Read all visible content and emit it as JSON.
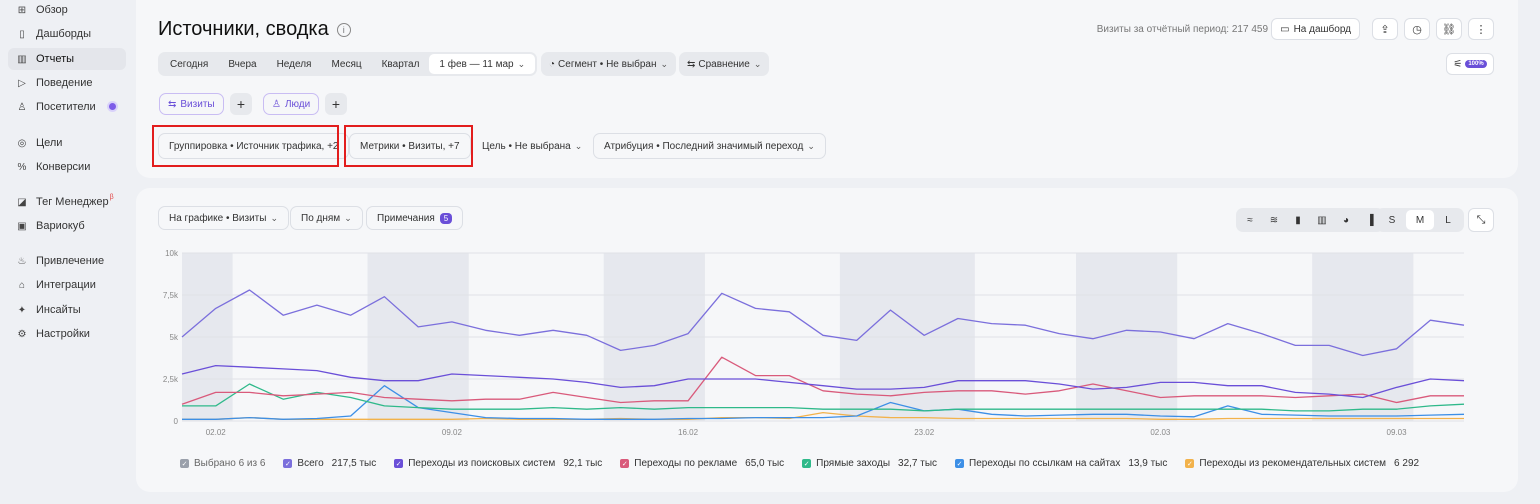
{
  "sidebar": {
    "items": [
      {
        "label": "Обзор",
        "icon": "grid-icon"
      },
      {
        "label": "Дашборды",
        "icon": "dashboard-icon"
      },
      {
        "label": "Отчеты",
        "icon": "reports-icon"
      },
      {
        "label": "Поведение",
        "icon": "play-icon"
      },
      {
        "label": "Посетители",
        "icon": "person-icon"
      },
      {
        "label": "Цели",
        "icon": "target-icon"
      },
      {
        "label": "Конверсии",
        "icon": "percent-icon"
      },
      {
        "label": "Тег Менеджер",
        "icon": "tag-icon"
      },
      {
        "label": "Вариокуб",
        "icon": "cube-icon"
      },
      {
        "label": "Привлечение",
        "icon": "flame-icon"
      },
      {
        "label": "Интеграции",
        "icon": "puzzle-icon"
      },
      {
        "label": "Инсайты",
        "icon": "sparkle-icon"
      },
      {
        "label": "Настройки",
        "icon": "gear-icon"
      }
    ],
    "tag_sup": "β"
  },
  "header": {
    "title": "Источники, сводка",
    "visits_total": "Визиты за отчётный период: 217 459",
    "to_dashboard": "На дашборд"
  },
  "periods": [
    "Сегодня",
    "Вчера",
    "Неделя",
    "Месяц",
    "Квартал"
  ],
  "date_range": "1 фев — 11 мар",
  "segment": "Сегмент • Не выбран",
  "compare": "Сравнение",
  "zoom_badge": "100%",
  "segments": {
    "visits": "Визиты",
    "people": "Люди"
  },
  "params": {
    "grouping": "Группировка • Источник трафика, +2",
    "metrics": "Метрики • Визиты, +7",
    "goal": "Цель • Не выбрана",
    "attribution": "Атрибуция • Последний значимый переход"
  },
  "chart_controls": {
    "on_chart": "На графике • Визиты",
    "by_days": "По дням",
    "notes": "Примечания",
    "notes_count": "5",
    "sizes": [
      "S",
      "M",
      "L"
    ],
    "selected_size": "M"
  },
  "legend": {
    "selected": "Выбрано 6 из 6",
    "items": [
      {
        "name": "Всего",
        "value": "217,5 тыс",
        "color": "#7b6fdc"
      },
      {
        "name": "Переходы из поисковых систем",
        "value": "92,1 тыс",
        "color": "#6a4fd8"
      },
      {
        "name": "Переходы по рекламе",
        "value": "65,0 тыс",
        "color": "#d95a7b"
      },
      {
        "name": "Прямые заходы",
        "value": "32,7 тыс",
        "color": "#2fb98a"
      },
      {
        "name": "Переходы по ссылкам на сайтах",
        "value": "13,9 тыс",
        "color": "#3d8fe6"
      },
      {
        "name": "Переходы из рекомендательных систем",
        "value": "6 292",
        "color": "#f2b24b"
      }
    ]
  },
  "chart_data": {
    "type": "line",
    "ylim": [
      0,
      10000
    ],
    "yticks": [
      "0",
      "2,5k",
      "5k",
      "7,5k",
      "10k"
    ],
    "ytick_values": [
      0,
      2500,
      5000,
      7500,
      10000
    ],
    "xticks": [
      "02.02",
      "09.02",
      "16.02",
      "23.02",
      "02.03",
      "09.03"
    ],
    "xtick_index": [
      1,
      8,
      15,
      22,
      29,
      36
    ],
    "weekend_bands": [
      [
        0,
        1
      ],
      [
        6,
        8
      ],
      [
        13,
        15
      ],
      [
        20,
        23
      ],
      [
        27,
        29
      ],
      [
        34,
        36
      ]
    ],
    "series": [
      {
        "name": "Всего",
        "color": "#7b6fdc",
        "values": [
          5000,
          6700,
          7800,
          6300,
          6900,
          6300,
          7400,
          5600,
          5900,
          5400,
          5100,
          5400,
          5100,
          4200,
          4500,
          5200,
          7600,
          6700,
          6500,
          5100,
          4800,
          6600,
          5100,
          6100,
          5800,
          5700,
          5200,
          4900,
          5400,
          5300,
          4900,
          5800,
          5200,
          4500,
          4500,
          3900,
          4300,
          6000,
          5700
        ]
      },
      {
        "name": "Переходы из поисковых систем",
        "color": "#6a4fd8",
        "values": [
          2800,
          3300,
          3200,
          3100,
          3000,
          2600,
          2400,
          2400,
          2800,
          2700,
          2600,
          2500,
          2300,
          2000,
          2100,
          2500,
          2500,
          2500,
          2300,
          2100,
          1900,
          1900,
          2000,
          2400,
          2400,
          2400,
          2200,
          1900,
          2000,
          2300,
          2300,
          2100,
          2100,
          1700,
          1600,
          1400,
          2000,
          2500,
          2400
        ]
      },
      {
        "name": "Переходы по рекламе",
        "color": "#d95a7b",
        "values": [
          1000,
          1700,
          1700,
          1500,
          1600,
          1700,
          1400,
          1300,
          1200,
          1300,
          1300,
          1700,
          1400,
          1100,
          1200,
          1200,
          3800,
          2700,
          2700,
          1800,
          1600,
          1500,
          1700,
          1800,
          1800,
          1600,
          1800,
          2200,
          1800,
          1400,
          1500,
          1500,
          1500,
          1400,
          1500,
          1600,
          1100,
          1500,
          1500
        ]
      },
      {
        "name": "Прямые заходы",
        "color": "#2fb98a",
        "values": [
          900,
          900,
          2200,
          1300,
          1700,
          1400,
          900,
          800,
          700,
          700,
          700,
          800,
          700,
          800,
          700,
          800,
          800,
          800,
          800,
          700,
          700,
          700,
          600,
          700,
          700,
          700,
          700,
          700,
          700,
          700,
          700,
          700,
          700,
          600,
          600,
          700,
          700,
          900,
          1000
        ]
      },
      {
        "name": "Переходы по ссылкам на сайтах",
        "color": "#3d8fe6",
        "values": [
          100,
          100,
          200,
          100,
          150,
          300,
          2100,
          800,
          500,
          200,
          150,
          150,
          100,
          100,
          100,
          150,
          150,
          200,
          200,
          200,
          300,
          1100,
          600,
          700,
          400,
          300,
          350,
          400,
          400,
          300,
          250,
          900,
          400,
          350,
          300,
          300,
          300,
          350,
          400
        ]
      },
      {
        "name": "Переходы из рекомендательных систем",
        "color": "#f2b24b",
        "values": [
          100,
          100,
          200,
          100,
          100,
          100,
          100,
          100,
          100,
          150,
          100,
          100,
          100,
          150,
          100,
          100,
          200,
          200,
          150,
          500,
          300,
          200,
          200,
          150,
          150,
          150,
          150,
          150,
          150,
          100,
          100,
          150,
          150,
          150,
          150,
          150,
          150,
          150,
          150
        ]
      }
    ]
  }
}
